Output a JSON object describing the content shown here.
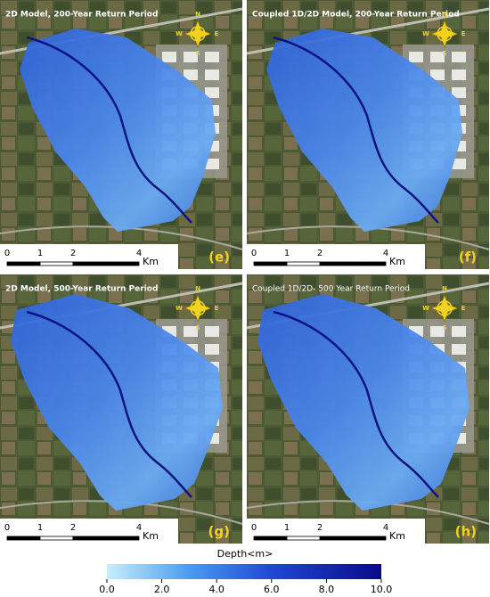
{
  "panels": [
    {
      "title": "2D Model, 200-Year Return Period",
      "label": "(e)"
    },
    {
      "title": "Coupled 1D/2D Model, 200-Year Return Period",
      "label": "(f)"
    },
    {
      "title": "2D Model, 500-Year Return Period",
      "label": "(g)"
    },
    {
      "title": "Coupled 1D/2D- 500 Year Return Period",
      "label": "(h)"
    }
  ],
  "compass": {
    "north": "N",
    "east": "E",
    "south": "S",
    "west": "W"
  },
  "scale_bar": {
    "ticks": [
      0,
      1,
      2,
      4
    ],
    "unit": "Km"
  },
  "legend": {
    "title": "Depth<m>",
    "range": [
      0,
      10
    ],
    "ticks": [
      {
        "value": 0,
        "label": "0.0"
      },
      {
        "value": 2,
        "label": "2.0"
      },
      {
        "value": 4,
        "label": "4.0"
      },
      {
        "value": 6,
        "label": "6.0"
      },
      {
        "value": 8,
        "label": "8.0"
      },
      {
        "value": 10,
        "label": "10.0"
      }
    ]
  }
}
